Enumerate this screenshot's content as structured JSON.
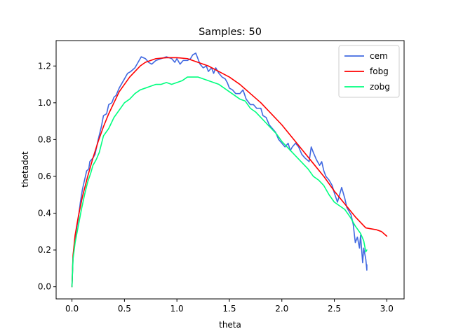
{
  "chart_data": {
    "type": "line",
    "title": "Samples: 50",
    "xlabel": "theta",
    "ylabel": "thetadot",
    "xlim": [
      -0.151,
      3.165
    ],
    "ylim": [
      -0.066,
      1.338
    ],
    "xticks": [
      0.0,
      0.5,
      1.0,
      1.5,
      2.0,
      2.5,
      3.0
    ],
    "xtick_labels": [
      "0.0",
      "0.5",
      "1.0",
      "1.5",
      "2.0",
      "2.5",
      "3.0"
    ],
    "yticks": [
      0.0,
      0.2,
      0.4,
      0.6,
      0.8,
      1.0,
      1.2
    ],
    "ytick_labels": [
      "0.0",
      "0.2",
      "0.4",
      "0.6",
      "0.8",
      "1.0",
      "1.2"
    ],
    "grid": false,
    "legend_position": "top-right",
    "series": [
      {
        "name": "cem",
        "color": "#4169e1",
        "points": [
          [
            0.0,
            0.0
          ],
          [
            0.01,
            0.16
          ],
          [
            0.03,
            0.27
          ],
          [
            0.06,
            0.37
          ],
          [
            0.08,
            0.46
          ],
          [
            0.1,
            0.53
          ],
          [
            0.12,
            0.58
          ],
          [
            0.14,
            0.63
          ],
          [
            0.16,
            0.64
          ],
          [
            0.17,
            0.68
          ],
          [
            0.2,
            0.7
          ],
          [
            0.22,
            0.72
          ],
          [
            0.25,
            0.8
          ],
          [
            0.28,
            0.87
          ],
          [
            0.3,
            0.93
          ],
          [
            0.33,
            0.94
          ],
          [
            0.35,
            0.99
          ],
          [
            0.38,
            1.0
          ],
          [
            0.4,
            1.03
          ],
          [
            0.42,
            1.04
          ],
          [
            0.45,
            1.08
          ],
          [
            0.48,
            1.11
          ],
          [
            0.5,
            1.13
          ],
          [
            0.53,
            1.16
          ],
          [
            0.56,
            1.17
          ],
          [
            0.6,
            1.19
          ],
          [
            0.63,
            1.22
          ],
          [
            0.66,
            1.25
          ],
          [
            0.7,
            1.24
          ],
          [
            0.73,
            1.22
          ],
          [
            0.76,
            1.21
          ],
          [
            0.8,
            1.23
          ],
          [
            0.85,
            1.24
          ],
          [
            0.9,
            1.25
          ],
          [
            0.95,
            1.24
          ],
          [
            0.98,
            1.22
          ],
          [
            1.0,
            1.24
          ],
          [
            1.03,
            1.21
          ],
          [
            1.06,
            1.23
          ],
          [
            1.1,
            1.23
          ],
          [
            1.13,
            1.24
          ],
          [
            1.15,
            1.26
          ],
          [
            1.18,
            1.27
          ],
          [
            1.2,
            1.24
          ],
          [
            1.22,
            1.21
          ],
          [
            1.25,
            1.19
          ],
          [
            1.28,
            1.2
          ],
          [
            1.3,
            1.17
          ],
          [
            1.33,
            1.19
          ],
          [
            1.35,
            1.16
          ],
          [
            1.37,
            1.19
          ],
          [
            1.4,
            1.16
          ],
          [
            1.43,
            1.14
          ],
          [
            1.46,
            1.13
          ],
          [
            1.48,
            1.11
          ],
          [
            1.5,
            1.08
          ],
          [
            1.53,
            1.07
          ],
          [
            1.56,
            1.05
          ],
          [
            1.6,
            1.05
          ],
          [
            1.63,
            1.07
          ],
          [
            1.66,
            1.02
          ],
          [
            1.7,
            0.99
          ],
          [
            1.73,
            0.99
          ],
          [
            1.76,
            0.97
          ],
          [
            1.8,
            0.97
          ],
          [
            1.82,
            0.93
          ],
          [
            1.85,
            0.92
          ],
          [
            1.88,
            0.88
          ],
          [
            1.91,
            0.86
          ],
          [
            1.94,
            0.84
          ],
          [
            1.97,
            0.8
          ],
          [
            2.0,
            0.78
          ],
          [
            2.03,
            0.76
          ],
          [
            2.06,
            0.78
          ],
          [
            2.08,
            0.74
          ],
          [
            2.1,
            0.76
          ],
          [
            2.13,
            0.78
          ],
          [
            2.16,
            0.76
          ],
          [
            2.19,
            0.72
          ],
          [
            2.22,
            0.7
          ],
          [
            2.26,
            0.68
          ],
          [
            2.28,
            0.76
          ],
          [
            2.3,
            0.73
          ],
          [
            2.33,
            0.69
          ],
          [
            2.36,
            0.66
          ],
          [
            2.38,
            0.68
          ],
          [
            2.4,
            0.63
          ],
          [
            2.42,
            0.6
          ],
          [
            2.45,
            0.58
          ],
          [
            2.48,
            0.55
          ],
          [
            2.5,
            0.51
          ],
          [
            2.53,
            0.46
          ],
          [
            2.55,
            0.5
          ],
          [
            2.57,
            0.54
          ],
          [
            2.6,
            0.48
          ],
          [
            2.62,
            0.43
          ],
          [
            2.64,
            0.41
          ],
          [
            2.66,
            0.39
          ],
          [
            2.68,
            0.34
          ],
          [
            2.7,
            0.24
          ],
          [
            2.72,
            0.27
          ],
          [
            2.74,
            0.21
          ],
          [
            2.75,
            0.28
          ],
          [
            2.77,
            0.13
          ],
          [
            2.78,
            0.21
          ],
          [
            2.8,
            0.15
          ],
          [
            2.81,
            0.09
          ],
          [
            2.81,
            0.12
          ]
        ]
      },
      {
        "name": "fobg",
        "color": "#ff0000",
        "points": [
          [
            0.0,
            0.0
          ],
          [
            0.01,
            0.17
          ],
          [
            0.03,
            0.28
          ],
          [
            0.06,
            0.38
          ],
          [
            0.1,
            0.49
          ],
          [
            0.15,
            0.6
          ],
          [
            0.2,
            0.7
          ],
          [
            0.25,
            0.79
          ],
          [
            0.3,
            0.87
          ],
          [
            0.35,
            0.94
          ],
          [
            0.4,
            1.0
          ],
          [
            0.45,
            1.06
          ],
          [
            0.5,
            1.1
          ],
          [
            0.55,
            1.14
          ],
          [
            0.6,
            1.17
          ],
          [
            0.65,
            1.2
          ],
          [
            0.7,
            1.22
          ],
          [
            0.75,
            1.23
          ],
          [
            0.8,
            1.24
          ],
          [
            0.9,
            1.245
          ],
          [
            1.0,
            1.245
          ],
          [
            1.1,
            1.24
          ],
          [
            1.2,
            1.22
          ],
          [
            1.3,
            1.2
          ],
          [
            1.4,
            1.17
          ],
          [
            1.5,
            1.14
          ],
          [
            1.6,
            1.1
          ],
          [
            1.7,
            1.05
          ],
          [
            1.8,
            1.0
          ],
          [
            1.9,
            0.94
          ],
          [
            2.0,
            0.88
          ],
          [
            2.1,
            0.81
          ],
          [
            2.2,
            0.74
          ],
          [
            2.3,
            0.67
          ],
          [
            2.4,
            0.6
          ],
          [
            2.5,
            0.52
          ],
          [
            2.6,
            0.45
          ],
          [
            2.7,
            0.38
          ],
          [
            2.8,
            0.32
          ],
          [
            2.9,
            0.31
          ],
          [
            2.95,
            0.3
          ],
          [
            3.0,
            0.275
          ]
        ]
      },
      {
        "name": "zobg",
        "color": "#00ff7f",
        "points": [
          [
            0.0,
            0.0
          ],
          [
            0.01,
            0.15
          ],
          [
            0.03,
            0.24
          ],
          [
            0.06,
            0.33
          ],
          [
            0.09,
            0.42
          ],
          [
            0.12,
            0.5
          ],
          [
            0.15,
            0.57
          ],
          [
            0.18,
            0.62
          ],
          [
            0.2,
            0.66
          ],
          [
            0.23,
            0.69
          ],
          [
            0.26,
            0.73
          ],
          [
            0.3,
            0.82
          ],
          [
            0.35,
            0.86
          ],
          [
            0.4,
            0.92
          ],
          [
            0.45,
            0.96
          ],
          [
            0.5,
            1.0
          ],
          [
            0.55,
            1.02
          ],
          [
            0.6,
            1.05
          ],
          [
            0.65,
            1.07
          ],
          [
            0.7,
            1.08
          ],
          [
            0.75,
            1.09
          ],
          [
            0.8,
            1.1
          ],
          [
            0.85,
            1.1
          ],
          [
            0.9,
            1.11
          ],
          [
            0.95,
            1.1
          ],
          [
            1.0,
            1.11
          ],
          [
            1.05,
            1.12
          ],
          [
            1.1,
            1.14
          ],
          [
            1.15,
            1.14
          ],
          [
            1.2,
            1.14
          ],
          [
            1.25,
            1.13
          ],
          [
            1.3,
            1.12
          ],
          [
            1.35,
            1.11
          ],
          [
            1.4,
            1.1
          ],
          [
            1.45,
            1.08
          ],
          [
            1.5,
            1.06
          ],
          [
            1.55,
            1.04
          ],
          [
            1.6,
            1.02
          ],
          [
            1.65,
            1.01
          ],
          [
            1.7,
            0.97
          ],
          [
            1.75,
            0.95
          ],
          [
            1.8,
            0.92
          ],
          [
            1.85,
            0.89
          ],
          [
            1.9,
            0.86
          ],
          [
            1.95,
            0.83
          ],
          [
            2.0,
            0.79
          ],
          [
            2.05,
            0.76
          ],
          [
            2.1,
            0.73
          ],
          [
            2.15,
            0.7
          ],
          [
            2.2,
            0.67
          ],
          [
            2.25,
            0.64
          ],
          [
            2.3,
            0.6
          ],
          [
            2.35,
            0.58
          ],
          [
            2.4,
            0.55
          ],
          [
            2.45,
            0.5
          ],
          [
            2.5,
            0.46
          ],
          [
            2.55,
            0.44
          ],
          [
            2.6,
            0.42
          ],
          [
            2.65,
            0.38
          ],
          [
            2.7,
            0.33
          ],
          [
            2.75,
            0.29
          ],
          [
            2.78,
            0.25
          ],
          [
            2.8,
            0.19
          ],
          [
            2.81,
            0.2
          ]
        ]
      }
    ]
  }
}
